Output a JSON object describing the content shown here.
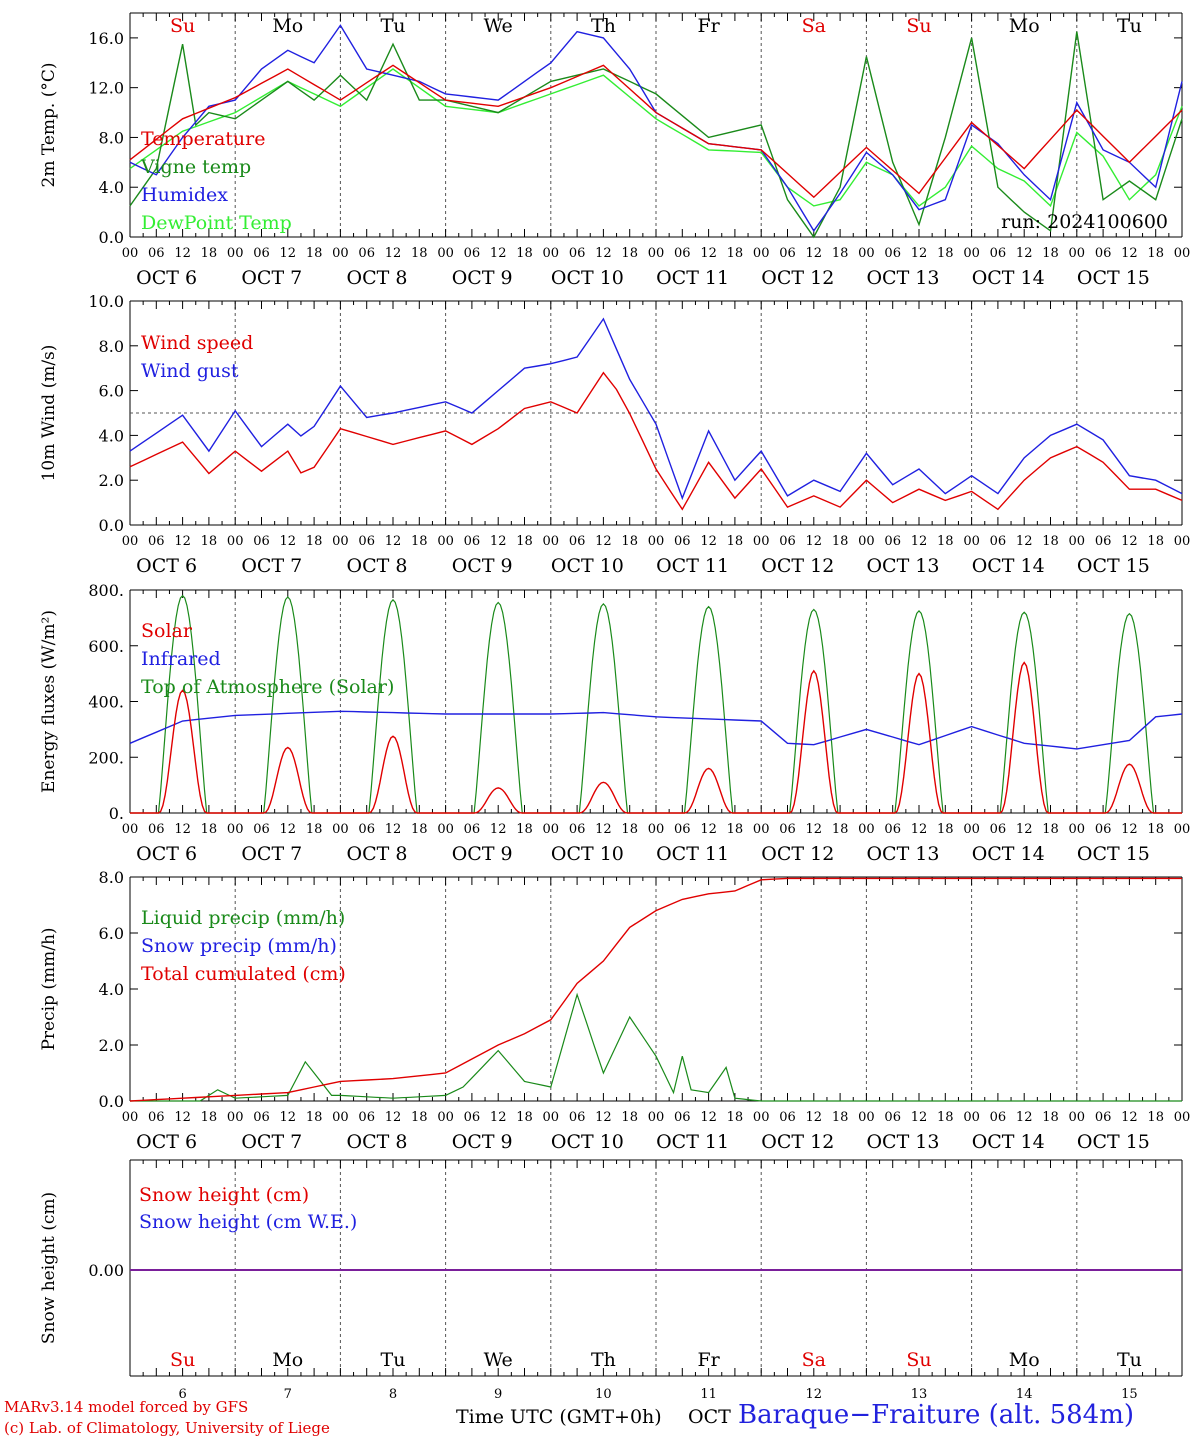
{
  "footer": {
    "credit_line1": "MARv3.14 model forced by GFS",
    "credit_line2": "(c) Lab. of Climatology, University of Liege",
    "x_title": "Time UTC (GMT+0h)",
    "month_label": "OCT",
    "station": "Baraque−Fraiture (alt. 584m)"
  },
  "colors": {
    "red": "#e00000",
    "green": "#1a8a1a",
    "blue": "#2020e0",
    "lightgreen": "#33ee33",
    "purple": "#7a1f9a",
    "axis": "#000000",
    "grid": "#555555"
  },
  "chart_data": [
    {
      "type": "line",
      "ylabel": "2m Temp. (°C)",
      "ylim": [
        0,
        18
      ],
      "yticks": [
        "0.0",
        "4.0",
        "8.0",
        "12.0",
        "16.0"
      ],
      "day_labels": [
        "Su",
        "Mo",
        "Tu",
        "We",
        "Th",
        "Fr",
        "Sa",
        "Su",
        "Mo",
        "Tu"
      ],
      "weekend_days": [
        0,
        6,
        7
      ],
      "annotation": "run: 2024100600",
      "x_hour_labels": [
        "00",
        "06",
        "12",
        "18"
      ],
      "x_date_labels": [
        "OCT  6",
        "OCT  7",
        "OCT  8",
        "OCT  9",
        "OCT 10",
        "OCT 11",
        "OCT 12",
        "OCT 13",
        "OCT 14",
        "OCT 15"
      ],
      "series": [
        {
          "name": "Temperature",
          "color": "red",
          "x": [
            0,
            12,
            24,
            36,
            48,
            60,
            72,
            84,
            96,
            108,
            120,
            132,
            144,
            156,
            168,
            180,
            192,
            204,
            216,
            228,
            240
          ],
          "values": [
            6.2,
            9.5,
            11.2,
            13.5,
            11.0,
            13.8,
            11.0,
            10.5,
            12.0,
            13.8,
            10.0,
            7.5,
            7.0,
            3.2,
            7.2,
            3.5,
            9.2,
            5.5,
            10.2,
            6.0,
            10.2
          ]
        },
        {
          "name": "Vigne temp",
          "color": "green",
          "x": [
            0,
            6,
            12,
            15,
            18,
            24,
            36,
            42,
            48,
            54,
            60,
            66,
            72,
            84,
            96,
            108,
            120,
            132,
            144,
            150,
            156,
            162,
            168,
            174,
            180,
            186,
            192,
            198,
            204,
            210,
            216,
            222,
            228,
            234,
            240
          ],
          "values": [
            2.5,
            5.5,
            15.5,
            9.0,
            10.0,
            9.5,
            12.5,
            11.0,
            13.0,
            11.0,
            15.5,
            11.0,
            11.0,
            10.0,
            12.5,
            13.5,
            11.5,
            8.0,
            9.0,
            3.0,
            0.0,
            4.0,
            14.5,
            6.0,
            1.0,
            8.0,
            16.0,
            4.0,
            2.0,
            0.5,
            16.5,
            3.0,
            4.5,
            3.0,
            9.5
          ]
        },
        {
          "name": "Humidex",
          "color": "blue",
          "x": [
            0,
            6,
            12,
            18,
            24,
            30,
            36,
            42,
            48,
            54,
            60,
            66,
            72,
            84,
            96,
            102,
            108,
            114,
            120,
            132,
            144,
            150,
            156,
            162,
            168,
            174,
            180,
            186,
            192,
            198,
            204,
            210,
            216,
            222,
            228,
            234,
            240
          ],
          "values": [
            6.0,
            5.0,
            8.0,
            10.5,
            11.0,
            13.5,
            15.0,
            14.0,
            17.0,
            13.5,
            13.0,
            12.5,
            11.5,
            11.0,
            14.0,
            16.5,
            16.0,
            13.5,
            10.0,
            7.5,
            7.0,
            4.0,
            0.5,
            3.5,
            6.8,
            5.0,
            2.2,
            3.0,
            9.0,
            7.5,
            5.0,
            3.0,
            10.8,
            7.0,
            6.0,
            4.0,
            12.5
          ]
        },
        {
          "name": "DewPoint Temp",
          "color": "lightgreen",
          "x": [
            0,
            12,
            24,
            36,
            48,
            60,
            72,
            84,
            96,
            108,
            120,
            132,
            144,
            150,
            156,
            162,
            168,
            174,
            180,
            186,
            192,
            198,
            204,
            210,
            216,
            222,
            228,
            234,
            240
          ],
          "values": [
            5.5,
            8.5,
            10.0,
            12.5,
            10.5,
            13.5,
            10.5,
            10.0,
            11.5,
            13.0,
            9.5,
            7.0,
            6.8,
            4.0,
            2.5,
            3.0,
            6.0,
            5.0,
            2.5,
            4.0,
            7.3,
            5.5,
            4.5,
            2.5,
            8.4,
            6.5,
            3.0,
            5.0,
            10.5
          ]
        }
      ]
    },
    {
      "type": "line",
      "ylabel": "10m Wind (m/s)",
      "ylim": [
        0,
        10
      ],
      "yticks": [
        "0.0",
        "2.0",
        "4.0",
        "6.0",
        "8.0",
        "10.0"
      ],
      "reference_line": 5,
      "x_hour_labels": [
        "00",
        "06",
        "12",
        "18"
      ],
      "x_date_labels": [
        "OCT  6",
        "OCT  7",
        "OCT  8",
        "OCT  9",
        "OCT 10",
        "OCT 11",
        "OCT 12",
        "OCT 13",
        "OCT 14",
        "OCT 15"
      ],
      "series": [
        {
          "name": "Wind speed",
          "color": "red",
          "x": [
            0,
            12,
            18,
            24,
            30,
            36,
            40,
            48,
            60,
            72,
            78,
            84,
            90,
            96,
            102,
            108,
            112,
            120,
            126,
            132,
            138,
            144,
            150,
            156,
            162,
            168,
            174,
            180,
            186,
            192,
            198,
            204,
            210,
            216,
            222,
            228,
            234,
            240
          ],
          "values": [
            2.6,
            3.7,
            2.3,
            3.3,
            2.4,
            3.3,
            2.0,
            4.3,
            3.6,
            4.2,
            3.6,
            4.3,
            5.2,
            5.5,
            5.0,
            6.8,
            5.8,
            2.5,
            0.7,
            2.8,
            1.2,
            2.5,
            0.8,
            1.3,
            0.8,
            2.0,
            1.0,
            1.6,
            1.1,
            1.5,
            0.7,
            2.0,
            3.0,
            3.5,
            2.8,
            1.6,
            1.6,
            1.1
          ]
        },
        {
          "name": "Wind gust",
          "color": "blue",
          "x": [
            0,
            12,
            18,
            24,
            30,
            36,
            40,
            48,
            54,
            60,
            72,
            78,
            84,
            90,
            96,
            102,
            108,
            114,
            120,
            126,
            132,
            138,
            144,
            150,
            156,
            162,
            168,
            174,
            180,
            186,
            192,
            198,
            204,
            210,
            216,
            222,
            228,
            234,
            240
          ],
          "values": [
            3.3,
            4.9,
            3.3,
            5.1,
            3.5,
            4.5,
            3.8,
            6.2,
            4.8,
            5.0,
            5.5,
            5.0,
            6.0,
            7.0,
            7.2,
            7.5,
            9.2,
            6.5,
            4.5,
            1.2,
            4.2,
            2.0,
            3.3,
            1.3,
            2.0,
            1.5,
            3.2,
            1.8,
            2.5,
            1.4,
            2.2,
            1.4,
            3.0,
            4.0,
            4.5,
            3.8,
            2.2,
            2.0,
            1.4
          ]
        }
      ]
    },
    {
      "type": "line",
      "ylabel": "Energy fluxes (W/m²)",
      "ylim": [
        0,
        800
      ],
      "yticks": [
        "0.",
        "200.",
        "400.",
        "600.",
        "800."
      ],
      "x_hour_labels": [
        "00",
        "06",
        "12",
        "18"
      ],
      "x_date_labels": [
        "OCT  6",
        "OCT  7",
        "OCT  8",
        "OCT  9",
        "OCT 10",
        "OCT 11",
        "OCT 12",
        "OCT 13",
        "OCT 14",
        "OCT 15"
      ],
      "toa_peaks": [
        780,
        775,
        765,
        755,
        750,
        740,
        730,
        725,
        720,
        715
      ],
      "solar_peaks": [
        440,
        235,
        275,
        90,
        110,
        160,
        510,
        500,
        540,
        175
      ],
      "series": [
        {
          "name": "Solar",
          "color": "red"
        },
        {
          "name": "Infrared",
          "color": "blue",
          "x": [
            0,
            12,
            24,
            48,
            72,
            96,
            108,
            120,
            144,
            150,
            156,
            168,
            180,
            192,
            204,
            216,
            228,
            234,
            240
          ],
          "values": [
            250,
            330,
            350,
            365,
            355,
            355,
            360,
            345,
            330,
            250,
            245,
            300,
            245,
            310,
            250,
            230,
            260,
            345,
            355
          ]
        },
        {
          "name": "Top of Atmosphere (Solar)",
          "color": "green"
        }
      ]
    },
    {
      "type": "line",
      "ylabel": "Precip (mm/h)",
      "ylim": [
        0,
        8
      ],
      "yticks": [
        "0.0",
        "2.0",
        "4.0",
        "6.0",
        "8.0"
      ],
      "x_hour_labels": [
        "00",
        "06",
        "12",
        "18"
      ],
      "x_date_labels": [
        "OCT  6",
        "OCT  7",
        "OCT  8",
        "OCT  9",
        "OCT 10",
        "OCT 11",
        "OCT 12",
        "OCT 13",
        "OCT 14",
        "OCT 15"
      ],
      "series": [
        {
          "name": "Liquid precip (mm/h)",
          "color": "green",
          "x": [
            0,
            16,
            18,
            20,
            24,
            36,
            40,
            46,
            48,
            60,
            72,
            76,
            84,
            90,
            96,
            102,
            108,
            114,
            120,
            124,
            126,
            128,
            132,
            136,
            138,
            144,
            150,
            156,
            168,
            180,
            192,
            204,
            216,
            228,
            240
          ],
          "values": [
            0,
            0,
            0.2,
            0.4,
            0.1,
            0.2,
            1.4,
            0.2,
            0.2,
            0.1,
            0.2,
            0.5,
            1.8,
            0.7,
            0.5,
            3.8,
            1.0,
            3.0,
            1.6,
            0.3,
            1.6,
            0.4,
            0.3,
            1.2,
            0.1,
            0.0,
            0.0,
            0.0,
            0.0,
            0.0,
            0.0,
            0.0,
            0.0,
            0.0,
            0.0
          ]
        },
        {
          "name": "Snow precip (mm/h)",
          "color": "blue"
        },
        {
          "name": "Total cumulated (cm)",
          "color": "red",
          "x": [
            0,
            12,
            24,
            36,
            48,
            60,
            72,
            84,
            90,
            96,
            102,
            108,
            114,
            120,
            126,
            132,
            138,
            144,
            150,
            168,
            192,
            216,
            240
          ],
          "values": [
            0,
            0.1,
            0.2,
            0.3,
            0.7,
            0.8,
            1.0,
            2.0,
            2.4,
            2.9,
            4.2,
            5.0,
            6.2,
            6.8,
            7.2,
            7.4,
            7.5,
            7.9,
            7.95,
            7.95,
            7.95,
            7.95,
            7.95
          ]
        }
      ]
    },
    {
      "type": "line",
      "ylabel": "Snow height (cm)",
      "yticks": [
        "0.00"
      ],
      "day_labels": [
        "Su",
        "Mo",
        "Tu",
        "We",
        "Th",
        "Fr",
        "Sa",
        "Su",
        "Mo",
        "Tu"
      ],
      "weekend_days": [
        0,
        6,
        7
      ],
      "day_numbers": [
        "6",
        "7",
        "8",
        "9",
        "10",
        "11",
        "12",
        "13",
        "14",
        "15"
      ],
      "series": [
        {
          "name": "Snow height (cm)",
          "color": "red",
          "x": [
            0,
            240
          ],
          "values": [
            0,
            0
          ]
        },
        {
          "name": "Snow height (cm W.E.)",
          "color": "blue",
          "x": [
            0,
            240
          ],
          "values": [
            0,
            0
          ]
        }
      ]
    }
  ]
}
